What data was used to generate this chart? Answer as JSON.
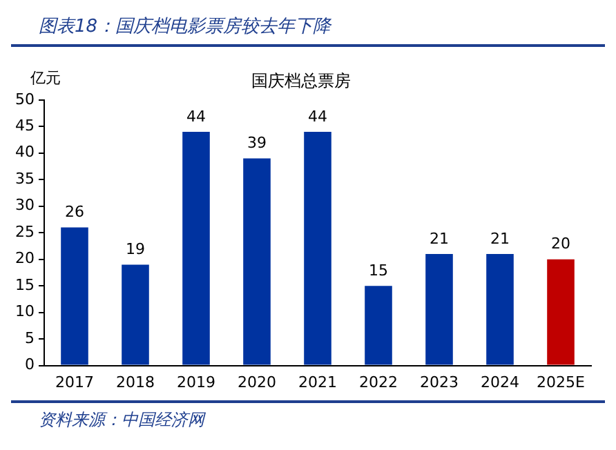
{
  "chart_data": {
    "type": "bar",
    "title": "图表18：国庆档电影票房较去年下降",
    "subtitle": "国庆档总票房",
    "ylabel": "亿元",
    "annotations": [
      "资料来源：中国经济网"
    ],
    "categories": [
      "2017",
      "2018",
      "2019",
      "2020",
      "2021",
      "2022",
      "2023",
      "2024",
      "2025E"
    ],
    "values": [
      26,
      19,
      44,
      39,
      44,
      15,
      21,
      21,
      20
    ],
    "colors": [
      "#0033a0",
      "#0033a0",
      "#0033a0",
      "#0033a0",
      "#0033a0",
      "#0033a0",
      "#0033a0",
      "#0033a0",
      "#c00000"
    ],
    "ylim": [
      0,
      50
    ],
    "yticks": [
      0,
      5,
      10,
      15,
      20,
      25,
      30,
      35,
      40,
      45,
      50
    ],
    "data_labels": true,
    "grid": false,
    "legend": false
  }
}
